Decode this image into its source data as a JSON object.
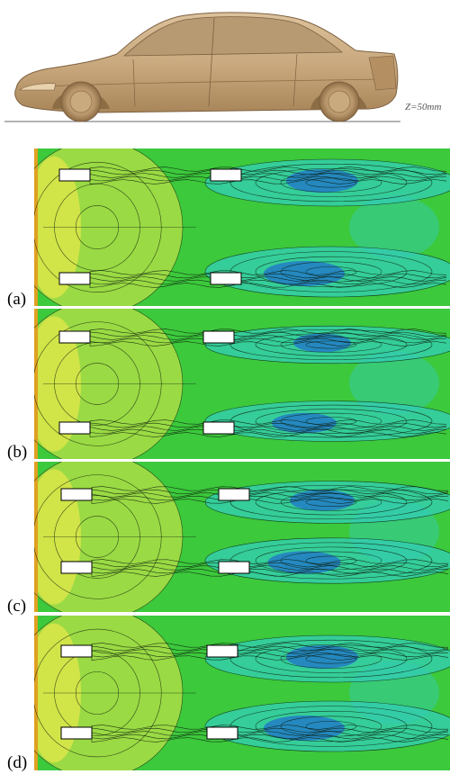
{
  "figure": {
    "ground_label": "Z=50mm",
    "colors": {
      "car_body": "#c8a77c",
      "car_shadow": "#9c7c52",
      "field_background": "#3cc93c",
      "high_value": "#e8e84a",
      "mid_value": "#33cdb8",
      "low_value": "#1a5ad8",
      "contour_line": "#0a1a0a",
      "obstacle": "#ffffff"
    },
    "panels": [
      {
        "label": "(a)"
      },
      {
        "label": "(b)"
      },
      {
        "label": "(c)"
      },
      {
        "label": "(d)"
      }
    ]
  }
}
